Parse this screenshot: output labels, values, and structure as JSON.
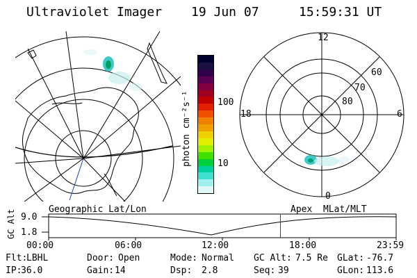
{
  "header": {
    "title": "Ultraviolet Imager",
    "date": "19 Jun 07",
    "time": "15:59:31 UT"
  },
  "colorbar": {
    "unit_label": "photon cm⁻²s⁻¹",
    "ticks": [
      "100",
      "10"
    ],
    "colors": [
      "#000030",
      "#1a1040",
      "#30004a",
      "#5a0050",
      "#800040",
      "#a00020",
      "#c00000",
      "#e02000",
      "#f05000",
      "#f08000",
      "#f0a000",
      "#f0d000",
      "#e0f000",
      "#a0f000",
      "#40e000",
      "#00d040",
      "#00d0a0",
      "#40e0d0",
      "#a0f0f0",
      "#e0f8f8"
    ]
  },
  "left_map": {
    "label": "Geographic Lat/Lon",
    "projection": "geographic"
  },
  "right_map": {
    "label": "Apex  MLat/MLT",
    "mlt_labels": [
      "12",
      "18",
      "6",
      "0"
    ],
    "lat_labels": [
      "60",
      "70",
      "80"
    ]
  },
  "timeline": {
    "ylabel": "GC Alt",
    "y_ticks": [
      "9.0",
      "1.8"
    ],
    "x_ticks": [
      "00:00",
      "06:00",
      "12:00",
      "18:00",
      "23:59"
    ],
    "current_time_fraction": 0.667
  },
  "status": {
    "row1": [
      {
        "key": "Flt:",
        "value": "LBHL"
      },
      {
        "key": "Door:",
        "value": "Open"
      },
      {
        "key": "Mode:",
        "value": "Normal"
      },
      {
        "key": "GC Alt:",
        "value": "7.5 Re"
      },
      {
        "key": "GLat:",
        "value": "-76.7"
      }
    ],
    "row2": [
      {
        "key": "IP:",
        "value": "36.0"
      },
      {
        "key": "Gain:",
        "value": "14"
      },
      {
        "key": "Dsp:",
        "value": "2.8"
      },
      {
        "key": "Seq:",
        "value": "39"
      },
      {
        "key": "GLon:",
        "value": "113.6"
      }
    ]
  }
}
